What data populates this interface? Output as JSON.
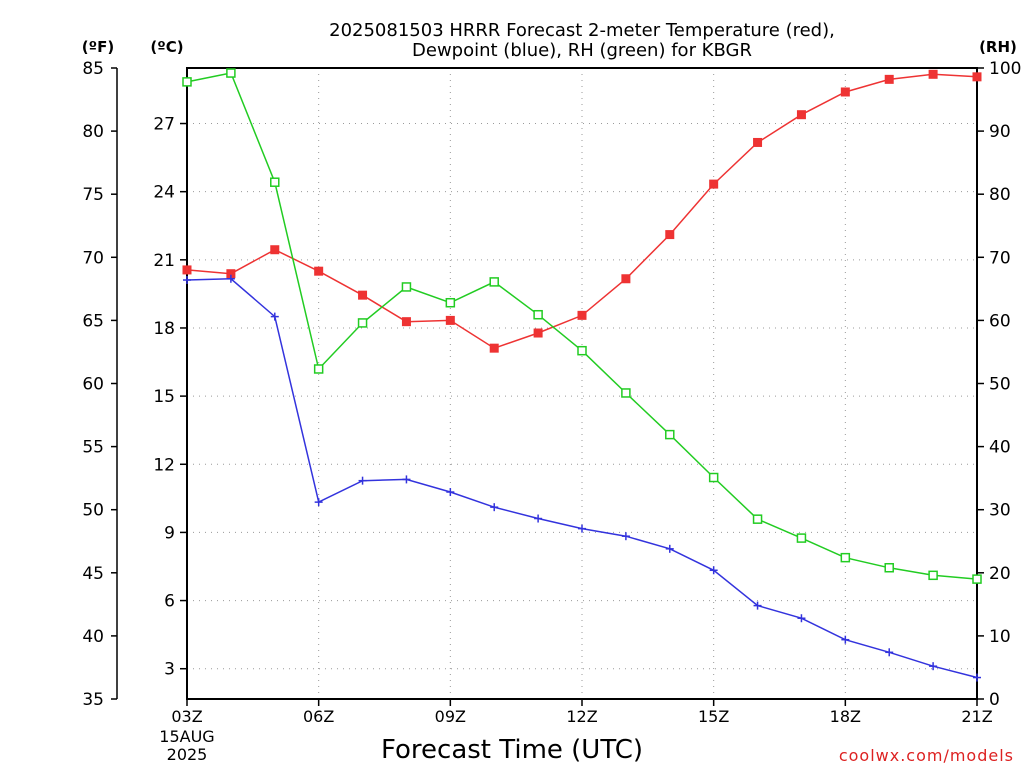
{
  "chart_data": {
    "type": "line",
    "title_line1": "2025081503 HRRR Forecast 2-meter Temperature (red),",
    "title_line2": "Dewpoint (blue), RH (green) for KBGR",
    "xlabel": "Forecast Time (UTC)",
    "watermark": "coolwx.com/models",
    "left_axis_label_f": "(ºF)",
    "left_axis_label_c": "(ºC)",
    "right_axis_label": "(RH)",
    "x_range_hours": [
      3,
      21
    ],
    "x_ticks": [
      {
        "hour": 3,
        "label": "03Z"
      },
      {
        "hour": 6,
        "label": "06Z"
      },
      {
        "hour": 9,
        "label": "09Z"
      },
      {
        "hour": 12,
        "label": "12Z"
      },
      {
        "hour": 15,
        "label": "15Z"
      },
      {
        "hour": 18,
        "label": "18Z"
      },
      {
        "hour": 21,
        "label": "21Z"
      }
    ],
    "x_date_lines": [
      "15AUG",
      "2025"
    ],
    "y_f_range": [
      35,
      85
    ],
    "y_f_ticks": [
      35,
      40,
      45,
      50,
      55,
      60,
      65,
      70,
      75,
      80,
      85
    ],
    "y_c_ticks": [
      3,
      6,
      9,
      12,
      15,
      18,
      21,
      24,
      27
    ],
    "y_rh_range": [
      0,
      100
    ],
    "y_rh_ticks": [
      0,
      10,
      20,
      30,
      40,
      50,
      60,
      70,
      80,
      90,
      100
    ],
    "grid": true,
    "x": [
      3,
      4,
      5,
      6,
      7,
      8,
      9,
      10,
      11,
      12,
      13,
      14,
      15,
      16,
      17,
      18,
      19,
      20,
      21
    ],
    "series": [
      {
        "name": "Temperature",
        "axis": "F",
        "color": "#ee3333",
        "marker": "filled-square",
        "values": [
          69.0,
          68.7,
          70.6,
          68.9,
          67.0,
          64.9,
          65.0,
          62.8,
          64.0,
          65.4,
          68.3,
          71.8,
          75.8,
          79.1,
          81.3,
          83.1,
          84.1,
          84.5,
          84.3
        ]
      },
      {
        "name": "Dewpoint",
        "axis": "F",
        "color": "#3333dd",
        "marker": "plus",
        "values": [
          68.2,
          68.3,
          65.3,
          50.6,
          52.3,
          52.4,
          51.4,
          50.2,
          49.3,
          48.5,
          47.9,
          46.9,
          45.2,
          42.4,
          41.4,
          39.7,
          38.7,
          37.6,
          36.7
        ]
      },
      {
        "name": "RH",
        "axis": "RH",
        "color": "#22cc22",
        "marker": "open-square",
        "values": [
          97.8,
          99.2,
          81.9,
          52.3,
          59.6,
          65.3,
          62.8,
          66.1,
          60.9,
          55.2,
          48.5,
          41.9,
          35.1,
          28.5,
          25.5,
          22.4,
          20.8,
          19.6,
          19.0
        ]
      }
    ]
  }
}
